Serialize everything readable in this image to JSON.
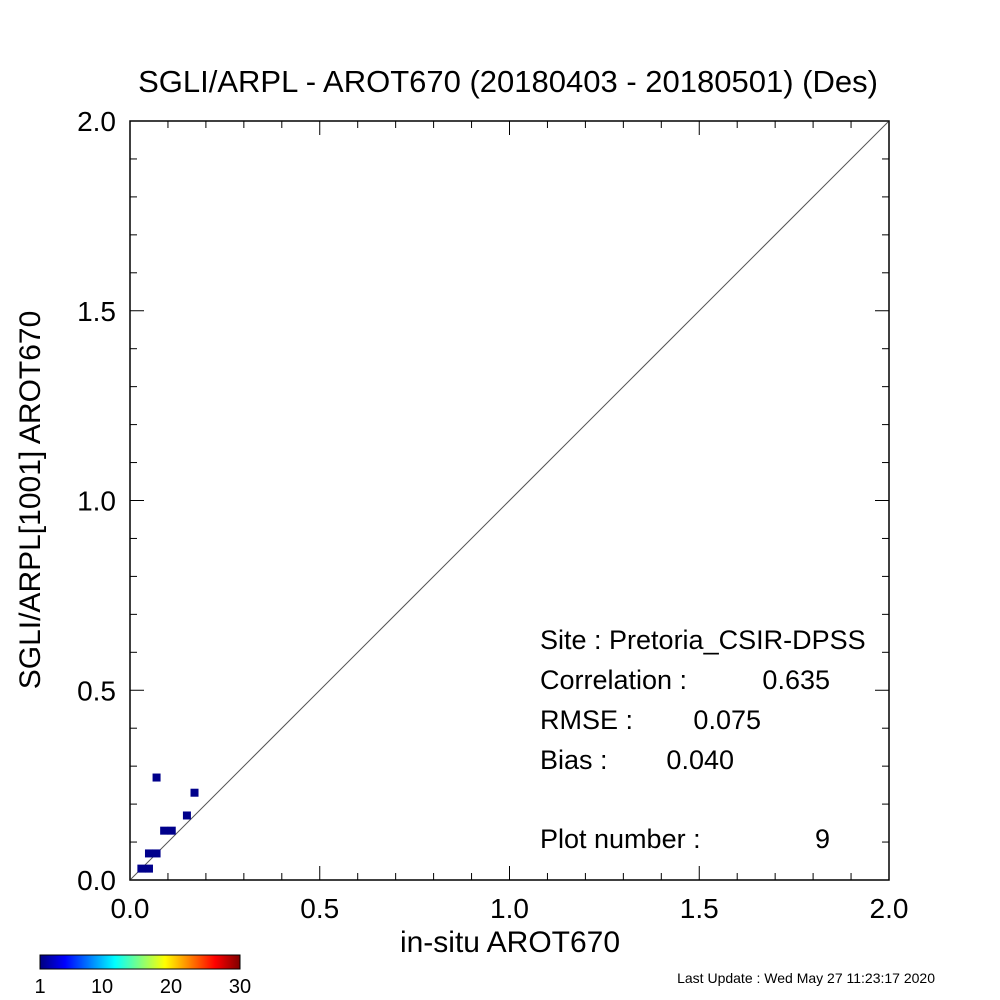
{
  "chart_data": {
    "type": "scatter",
    "title": "SGLI/ARPL - AROT670 (20180403 - 20180501) (Des)",
    "xlabel": "in-situ AROT670",
    "ylabel": "SGLI/ARPL[1001]    AROT670",
    "xlim": [
      0.0,
      2.0
    ],
    "ylim": [
      0.0,
      2.0
    ],
    "xticks": [
      "0.0",
      "0.5",
      "1.0",
      "1.5",
      "2.0"
    ],
    "yticks": [
      "0.0",
      "0.5",
      "1.0",
      "1.5",
      "2.0"
    ],
    "reference_line": "1:1",
    "grid": false,
    "points": [
      {
        "x": 0.03,
        "y": 0.03,
        "count": 1
      },
      {
        "x": 0.05,
        "y": 0.03,
        "count": 1
      },
      {
        "x": 0.05,
        "y": 0.07,
        "count": 1
      },
      {
        "x": 0.07,
        "y": 0.07,
        "count": 1
      },
      {
        "x": 0.09,
        "y": 0.13,
        "count": 1
      },
      {
        "x": 0.11,
        "y": 0.13,
        "count": 1
      },
      {
        "x": 0.15,
        "y": 0.17,
        "count": 1
      },
      {
        "x": 0.07,
        "y": 0.27,
        "count": 1
      },
      {
        "x": 0.17,
        "y": 0.23,
        "count": 1
      }
    ],
    "stats": {
      "site": "Site : Pretoria_CSIR-DPSS",
      "correlation_label": "Correlation :",
      "correlation": "0.635",
      "rmse_label": "RMSE :",
      "rmse": "0.075",
      "bias_label": "Bias :",
      "bias": "0.040",
      "plot_number_label": "Plot number :",
      "plot_number": "9"
    },
    "colorbar": {
      "colormap": "jet",
      "ticks": [
        "1",
        "10",
        "20",
        "30"
      ],
      "range": [
        1,
        30
      ],
      "colors": [
        "#00007f",
        "#0000ff",
        "#0080ff",
        "#00ffff",
        "#80ff80",
        "#ffff00",
        "#ff8000",
        "#ff0000",
        "#7f0000"
      ]
    },
    "point_color": "#00008b"
  },
  "footer": {
    "last_update": "Last Update : Wed May 27 11:23:17 2020"
  }
}
